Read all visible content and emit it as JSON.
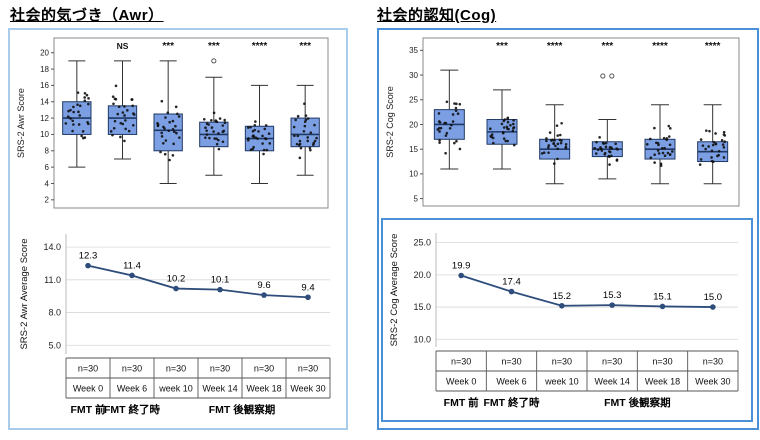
{
  "panels": {
    "awr": {
      "title": "社会的気づき（Awr）",
      "border_color": "#A8CCEA"
    },
    "cog": {
      "title": "社会的認知(Cog)",
      "border_color": "#4A90D9"
    }
  },
  "colors": {
    "box_fill": "#7C9FE3",
    "box_stroke": "#1F3864",
    "whisker": "#333333",
    "dot": "#111111",
    "line_color": "#2E4D7B",
    "grid": "#d8d8d8",
    "table_line": "#555555"
  },
  "chart_data": [
    {
      "id": "awr-box",
      "type": "boxplot",
      "ylabel": "SRS-2 Awr Score",
      "ylim": [
        1,
        21.8
      ],
      "yticks": [
        2,
        4,
        6,
        8,
        10,
        12,
        14,
        16,
        18,
        20
      ],
      "significance": [
        "",
        "NS",
        "***",
        "***",
        "****",
        "***"
      ],
      "n_dots": 28,
      "seed": 7,
      "boxes": [
        {
          "low": 6,
          "q1": 10,
          "med": 12,
          "q3": 14,
          "high": 19,
          "outliers": []
        },
        {
          "low": 7,
          "q1": 10,
          "med": 12,
          "q3": 13.5,
          "high": 19,
          "outliers": []
        },
        {
          "low": 4,
          "q1": 8,
          "med": 10.5,
          "q3": 12.5,
          "high": 19,
          "outliers": []
        },
        {
          "low": 5,
          "q1": 8.5,
          "med": 10,
          "q3": 11.5,
          "high": 17,
          "outliers": [
            19
          ]
        },
        {
          "low": 4,
          "q1": 8,
          "med": 9.5,
          "q3": 11,
          "high": 16,
          "outliers": []
        },
        {
          "low": 5,
          "q1": 8.5,
          "med": 10,
          "q3": 12,
          "high": 16,
          "outliers": []
        }
      ]
    },
    {
      "id": "awr-line",
      "type": "line",
      "ylabel": "SRS-2 Awr Average Score",
      "ylim": [
        4.2,
        15.2
      ],
      "yticks": [
        5,
        8,
        11,
        14
      ],
      "ytick_labels": [
        "5.0",
        "8.0",
        "11.0",
        "14.0"
      ],
      "values": [
        12.3,
        11.4,
        10.2,
        10.1,
        9.6,
        9.4
      ],
      "value_labels": [
        "12.3",
        "11.4",
        "10.2",
        "10.1",
        "9.6",
        "9.4"
      ],
      "table": {
        "rows": [
          [
            "n=30",
            "n=30",
            "n=30",
            "n=30",
            "n=30",
            "n=30"
          ],
          [
            "Week 0",
            "Week 6",
            "week 10",
            "Week 14",
            "Week 18",
            "Week 30"
          ]
        ]
      },
      "phases": [
        {
          "label": "FMT 前",
          "span": [
            0,
            0
          ]
        },
        {
          "label": "FMT 終了時",
          "span": [
            1,
            1
          ]
        },
        {
          "label": "FMT 後観察期",
          "span": [
            2,
            5
          ]
        }
      ]
    },
    {
      "id": "cog-box",
      "type": "boxplot",
      "ylabel": "SRS-2 Cog Score",
      "ylim": [
        3.5,
        37.5
      ],
      "yticks": [
        5,
        10,
        15,
        20,
        25,
        30,
        35
      ],
      "significance": [
        "",
        "***",
        "****",
        "***",
        "****",
        "****"
      ],
      "n_dots": 28,
      "seed": 13,
      "boxes": [
        {
          "low": 11,
          "q1": 17,
          "med": 20,
          "q3": 23,
          "high": 31,
          "outliers": []
        },
        {
          "low": 11,
          "q1": 16,
          "med": 18.5,
          "q3": 21,
          "high": 27,
          "outliers": []
        },
        {
          "low": 8,
          "q1": 13,
          "med": 15,
          "q3": 17,
          "high": 24,
          "outliers": []
        },
        {
          "low": 9,
          "q1": 13.5,
          "med": 15,
          "q3": 16.5,
          "high": 21,
          "outliers": [
            29.8,
            29.8
          ]
        },
        {
          "low": 8,
          "q1": 13,
          "med": 15,
          "q3": 17,
          "high": 24,
          "outliers": []
        },
        {
          "low": 8,
          "q1": 12.5,
          "med": 14.5,
          "q3": 16.5,
          "high": 24,
          "outliers": []
        }
      ]
    },
    {
      "id": "cog-line",
      "type": "line",
      "ylabel": "SRS-2 Cog Average Score",
      "ylim": [
        8.8,
        26.5
      ],
      "yticks": [
        10,
        15,
        20,
        25
      ],
      "ytick_labels": [
        "10.0",
        "15.0",
        "20.0",
        "25.0"
      ],
      "values": [
        19.9,
        17.4,
        15.2,
        15.3,
        15.1,
        15.0
      ],
      "value_labels": [
        "19.9",
        "17.4",
        "15.2",
        "15.3",
        "15.1",
        "15.0"
      ],
      "table": {
        "rows": [
          [
            "n=30",
            "n=30",
            "n=30",
            "n=30",
            "n=30",
            "n=30"
          ],
          [
            "Week 0",
            "Week 6",
            "week 10",
            "Week 14",
            "Week 18",
            "Week 30"
          ]
        ]
      },
      "phases": [
        {
          "label": "FMT 前",
          "span": [
            0,
            0
          ]
        },
        {
          "label": "FMT 終了時",
          "span": [
            1,
            1
          ]
        },
        {
          "label": "FMT 後観察期",
          "span": [
            2,
            5
          ]
        }
      ]
    }
  ]
}
